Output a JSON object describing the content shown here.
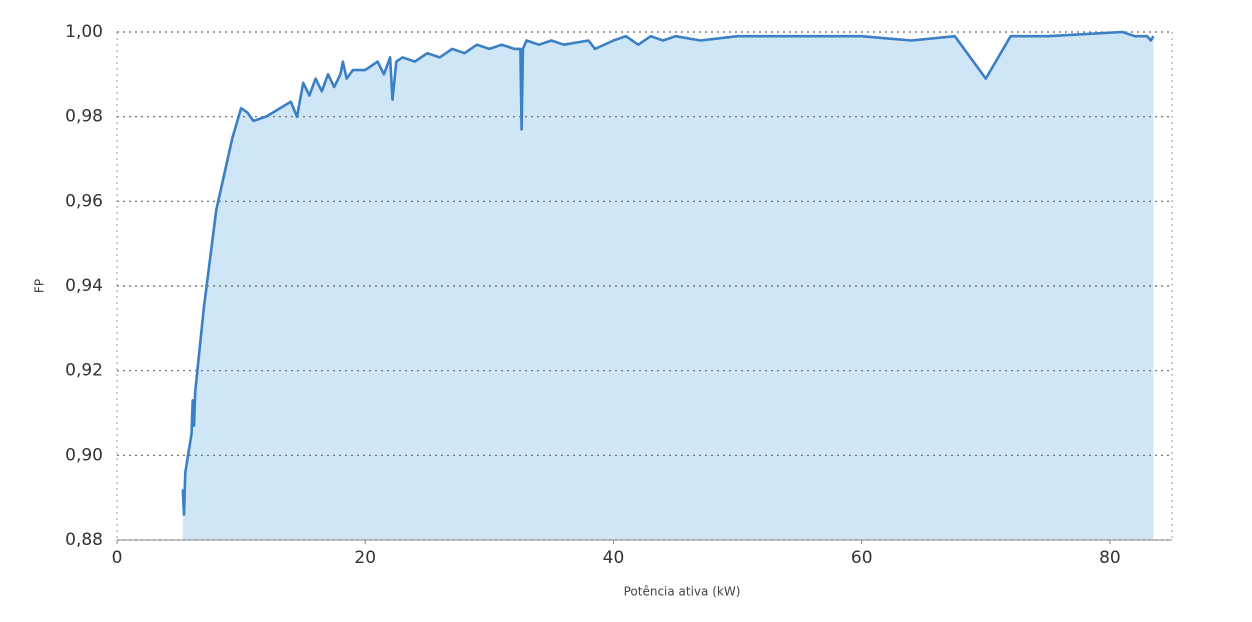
{
  "chart_data": {
    "type": "area",
    "x_label": "Potência ativa (kW)",
    "y_label": "FP",
    "line_color": "#3b7fc4",
    "fill_color": "#cfe6f6",
    "xlim": [
      0,
      85
    ],
    "xticks": [
      0,
      20,
      40,
      60,
      80
    ],
    "ylim": [
      0.88,
      1.0
    ],
    "yticks": [
      {
        "value": 0.88,
        "label": "0,88"
      },
      {
        "value": 0.9,
        "label": "0,90"
      },
      {
        "value": 0.92,
        "label": "0,92"
      },
      {
        "value": 0.94,
        "label": "0,94"
      },
      {
        "value": 0.96,
        "label": "0,96"
      },
      {
        "value": 0.98,
        "label": "0,98"
      },
      {
        "value": 1.0,
        "label": "1,00"
      }
    ],
    "grid": true,
    "x": [
      5.3,
      5.4,
      5.5,
      6.0,
      6.1,
      6.2,
      6.3,
      7.0,
      8.0,
      9.3,
      10.0,
      10.5,
      11.0,
      12,
      14,
      14.5,
      15,
      15.5,
      16,
      16.5,
      17,
      17.5,
      18,
      18.2,
      18.5,
      19,
      20,
      21,
      21.5,
      22,
      22.2,
      22.5,
      23,
      24,
      25,
      26,
      27,
      28,
      29,
      30,
      31,
      32,
      32.5,
      32.6,
      32.7,
      33,
      34,
      35,
      36,
      38,
      38.5,
      40,
      41,
      42,
      43,
      44,
      45,
      47,
      50,
      55,
      60,
      64,
      67.5,
      70,
      72,
      75,
      81,
      82,
      83,
      83.3,
      83.5
    ],
    "values": [
      0.892,
      0.886,
      0.896,
      0.905,
      0.913,
      0.907,
      0.915,
      0.935,
      0.958,
      0.975,
      0.982,
      0.981,
      0.979,
      0.98,
      0.9835,
      0.98,
      0.988,
      0.985,
      0.989,
      0.986,
      0.99,
      0.987,
      0.99,
      0.993,
      0.989,
      0.991,
      0.991,
      0.993,
      0.99,
      0.994,
      0.984,
      0.993,
      0.994,
      0.993,
      0.995,
      0.994,
      0.996,
      0.995,
      0.997,
      0.996,
      0.997,
      0.996,
      0.996,
      0.977,
      0.996,
      0.998,
      0.997,
      0.998,
      0.997,
      0.998,
      0.996,
      0.998,
      0.999,
      0.997,
      0.999,
      0.998,
      0.999,
      0.998,
      0.999,
      0.999,
      0.999,
      0.998,
      0.999,
      0.989,
      0.999,
      0.999,
      1.0,
      0.999,
      0.999,
      0.998,
      0.999
    ]
  }
}
